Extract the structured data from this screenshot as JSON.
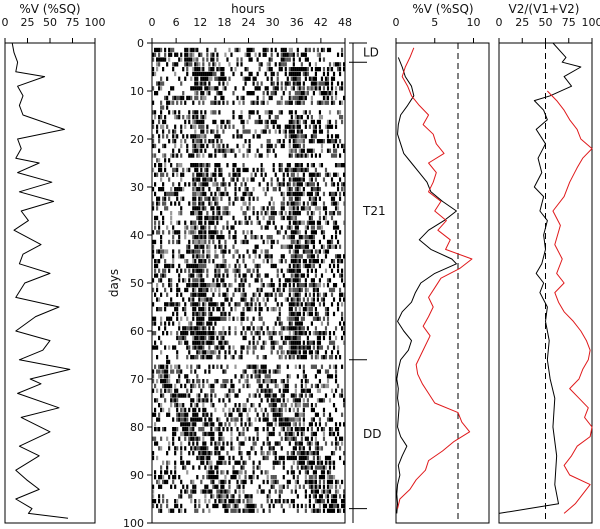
{
  "chart_data": [
    {
      "id": "panel_a",
      "type": "line",
      "xlabel": "%V (%SQ)",
      "ylabel": "",
      "xlim": [
        0,
        100
      ],
      "xticks": [
        0,
        25,
        50,
        75,
        100
      ],
      "ylim": [
        0,
        100
      ],
      "orientation": "vertical-series",
      "series": [
        {
          "color": "#000000",
          "points": [
            [
              8,
              0
            ],
            [
              10,
              2
            ],
            [
              14,
              4
            ],
            [
              12,
              6
            ],
            [
              44,
              7
            ],
            [
              14,
              9
            ],
            [
              20,
              11
            ],
            [
              16,
              13
            ],
            [
              20,
              15
            ],
            [
              66,
              18
            ],
            [
              14,
              20
            ],
            [
              18,
              22
            ],
            [
              12,
              24
            ],
            [
              38,
              25
            ],
            [
              14,
              27
            ],
            [
              52,
              29
            ],
            [
              16,
              31
            ],
            [
              54,
              33
            ],
            [
              18,
              35
            ],
            [
              26,
              37
            ],
            [
              10,
              39
            ],
            [
              40,
              42
            ],
            [
              20,
              44
            ],
            [
              16,
              46
            ],
            [
              50,
              48
            ],
            [
              22,
              50
            ],
            [
              12,
              53
            ],
            [
              60,
              55
            ],
            [
              34,
              57
            ],
            [
              12,
              60
            ],
            [
              50,
              62
            ],
            [
              42,
              64
            ],
            [
              16,
              66
            ],
            [
              72,
              68
            ],
            [
              28,
              70
            ],
            [
              40,
              71
            ],
            [
              14,
              73
            ],
            [
              60,
              76
            ],
            [
              18,
              78
            ],
            [
              50,
              81
            ],
            [
              16,
              84
            ],
            [
              38,
              86
            ],
            [
              12,
              89
            ],
            [
              24,
              91
            ],
            [
              38,
              93
            ],
            [
              12,
              95
            ],
            [
              30,
              97
            ],
            [
              26,
              98
            ],
            [
              70,
              99
            ]
          ]
        }
      ]
    },
    {
      "id": "panel_b",
      "type": "heatmap",
      "xlabel": "hours",
      "ylabel": "days",
      "xlim": [
        0,
        48
      ],
      "xticks": [
        0,
        6,
        12,
        18,
        24,
        30,
        36,
        42,
        48
      ],
      "ylim": [
        0,
        100
      ],
      "yticks": [
        0,
        10,
        20,
        30,
        40,
        50,
        60,
        70,
        80,
        90,
        100
      ],
      "rows": 97,
      "bins_per_row": 96,
      "row_seed": 1,
      "phases": [
        {
          "label": "LD",
          "start_day": 0,
          "end_day": 4,
          "activity_onset_hour": 8.0,
          "drift_hours_per_day": 0.0
        },
        {
          "label": "T21",
          "start_day": 4,
          "end_day": 66,
          "activity_onset_hour": 10.0,
          "drift_hours_per_day": 0.0
        },
        {
          "label": "DD",
          "start_day": 66,
          "end_day": 97,
          "activity_onset_hour": 0.0,
          "drift_hours_per_day": 0.6
        }
      ],
      "blank_rows": [
        12,
        23,
        65
      ]
    },
    {
      "id": "panel_c",
      "type": "line",
      "xlabel": "%V (%SQ)",
      "ylabel": "",
      "xlim": [
        0,
        12
      ],
      "xticks": [
        0,
        5,
        10
      ],
      "ylim": [
        0,
        100
      ],
      "reference_line": {
        "x": 8,
        "style": "dashed"
      },
      "phase_labels": [
        "LD",
        "T21",
        "DD"
      ],
      "series": [
        {
          "color": "#000000",
          "points": [
            [
              0.3,
              3
            ],
            [
              0.8,
              5
            ],
            [
              1.2,
              7
            ],
            [
              2.0,
              9
            ],
            [
              2.3,
              11
            ],
            [
              1.5,
              13
            ],
            [
              0.6,
              15
            ],
            [
              0.3,
              17
            ],
            [
              0.2,
              19
            ],
            [
              0.6,
              21
            ],
            [
              1.0,
              23
            ],
            [
              2.0,
              25
            ],
            [
              3.0,
              27
            ],
            [
              4.0,
              29
            ],
            [
              4.5,
              31
            ],
            [
              6.0,
              33
            ],
            [
              7.8,
              35
            ],
            [
              6.2,
              37
            ],
            [
              4.2,
              39
            ],
            [
              3.0,
              41
            ],
            [
              4.5,
              43
            ],
            [
              7.2,
              45
            ],
            [
              7.8,
              46
            ],
            [
              5.0,
              48
            ],
            [
              3.2,
              50
            ],
            [
              2.5,
              52
            ],
            [
              2.0,
              54
            ],
            [
              0.8,
              56
            ],
            [
              0.2,
              58
            ],
            [
              1.0,
              60
            ],
            [
              2.0,
              62
            ],
            [
              1.6,
              64
            ],
            [
              0.6,
              66
            ],
            [
              0.3,
              68
            ],
            [
              0.1,
              70
            ],
            [
              0.3,
              72
            ],
            [
              0.2,
              74
            ],
            [
              0.4,
              76
            ],
            [
              0.3,
              78
            ],
            [
              0.2,
              80
            ],
            [
              0.6,
              82
            ],
            [
              1.4,
              84
            ],
            [
              0.8,
              86
            ],
            [
              0.3,
              88
            ],
            [
              0.5,
              90
            ],
            [
              0.2,
              92
            ],
            [
              0.1,
              94
            ],
            [
              0.2,
              96
            ],
            [
              0.1,
              98
            ]
          ]
        },
        {
          "color": "#e0191b",
          "points": [
            [
              2.3,
              1
            ],
            [
              1.8,
              3
            ],
            [
              1.2,
              5
            ],
            [
              0.8,
              7
            ],
            [
              1.5,
              9
            ],
            [
              2.0,
              11
            ],
            [
              3.0,
              13
            ],
            [
              4.2,
              15
            ],
            [
              3.5,
              17
            ],
            [
              4.8,
              19
            ],
            [
              5.2,
              21
            ],
            [
              6.2,
              23
            ],
            [
              4.2,
              25
            ],
            [
              5.2,
              27
            ],
            [
              4.8,
              29
            ],
            [
              4.2,
              31
            ],
            [
              5.8,
              33
            ],
            [
              5.0,
              35
            ],
            [
              6.5,
              37
            ],
            [
              5.4,
              39
            ],
            [
              7.0,
              41
            ],
            [
              6.4,
              43
            ],
            [
              9.8,
              45
            ],
            [
              8.2,
              47
            ],
            [
              5.8,
              49
            ],
            [
              5.0,
              51
            ],
            [
              4.2,
              53
            ],
            [
              4.8,
              55
            ],
            [
              4.2,
              57
            ],
            [
              3.5,
              59
            ],
            [
              4.4,
              61
            ],
            [
              3.8,
              63
            ],
            [
              3.2,
              65
            ],
            [
              2.6,
              67
            ],
            [
              2.8,
              69
            ],
            [
              3.4,
              71
            ],
            [
              4.2,
              73
            ],
            [
              5.0,
              75
            ],
            [
              8.0,
              77
            ],
            [
              8.5,
              79
            ],
            [
              9.5,
              81
            ],
            [
              7.5,
              83
            ],
            [
              6.0,
              85
            ],
            [
              4.2,
              87
            ],
            [
              3.8,
              89
            ],
            [
              2.6,
              91
            ],
            [
              1.8,
              93
            ],
            [
              0.5,
              95
            ],
            [
              0.2,
              97
            ]
          ]
        }
      ]
    },
    {
      "id": "panel_d",
      "type": "line",
      "xlabel": "V2/(V1+V2)",
      "ylabel": "",
      "xlim": [
        0,
        100
      ],
      "xticks": [
        0,
        25,
        50,
        75,
        100
      ],
      "ylim": [
        0,
        100
      ],
      "reference_line": {
        "x": 50,
        "style": "dashed"
      },
      "series": [
        {
          "color": "#000000",
          "points": [
            [
              58,
              0
            ],
            [
              72,
              3
            ],
            [
              68,
              4
            ],
            [
              88,
              5
            ],
            [
              70,
              7
            ],
            [
              78,
              9
            ],
            [
              55,
              11
            ],
            [
              38,
              12
            ],
            [
              48,
              14
            ],
            [
              52,
              16
            ],
            [
              40,
              18
            ],
            [
              50,
              21
            ],
            [
              42,
              24
            ],
            [
              46,
              27
            ],
            [
              38,
              30
            ],
            [
              48,
              32
            ],
            [
              44,
              35
            ],
            [
              52,
              37
            ],
            [
              48,
              40
            ],
            [
              50,
              43
            ],
            [
              46,
              46
            ],
            [
              40,
              48
            ],
            [
              48,
              50
            ],
            [
              44,
              52
            ],
            [
              52,
              55
            ],
            [
              50,
              58
            ],
            [
              54,
              62
            ],
            [
              52,
              66
            ],
            [
              55,
              70
            ],
            [
              60,
              74
            ],
            [
              58,
              80
            ],
            [
              62,
              86
            ],
            [
              60,
              92
            ],
            [
              64,
              96
            ],
            [
              0,
              98
            ]
          ]
        },
        {
          "color": "#e0191b",
          "points": [
            [
              52,
              10
            ],
            [
              62,
              12
            ],
            [
              70,
              14
            ],
            [
              76,
              16
            ],
            [
              84,
              18
            ],
            [
              88,
              20
            ],
            [
              100,
              22
            ],
            [
              90,
              24
            ],
            [
              84,
              26
            ],
            [
              76,
              29
            ],
            [
              70,
              32
            ],
            [
              58,
              35
            ],
            [
              66,
              38
            ],
            [
              60,
              42
            ],
            [
              68,
              45
            ],
            [
              62,
              48
            ],
            [
              70,
              50
            ],
            [
              60,
              52
            ],
            [
              64,
              54
            ],
            [
              70,
              56
            ],
            [
              80,
              58
            ],
            [
              88,
              60
            ],
            [
              94,
              62
            ],
            [
              98,
              64
            ],
            [
              96,
              66
            ],
            [
              90,
              68
            ],
            [
              86,
              70
            ],
            [
              76,
              72
            ],
            [
              86,
              74
            ],
            [
              96,
              76
            ],
            [
              92,
              78
            ],
            [
              100,
              80
            ],
            [
              98,
              82
            ],
            [
              84,
              84
            ],
            [
              78,
              86
            ],
            [
              70,
              88
            ],
            [
              76,
              90
            ],
            [
              98,
              92
            ],
            [
              90,
              94
            ],
            [
              82,
              96
            ],
            [
              70,
              98
            ]
          ]
        }
      ]
    }
  ]
}
